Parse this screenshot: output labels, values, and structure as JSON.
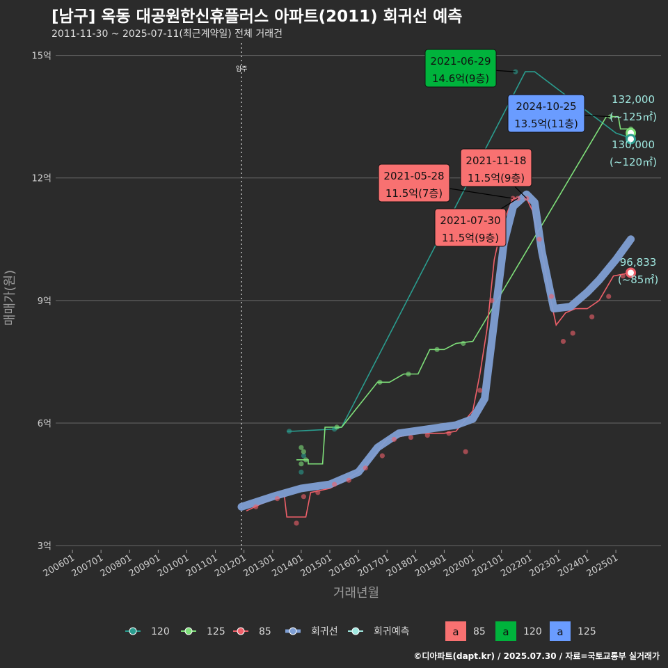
{
  "title": "[남구] 옥동 대공원한신휴플러스 아파트(2011) 회귀선 예측",
  "subtitle": "2011-11-30 ~ 2025-07-11(최근계약일) 전체 거래건",
  "caption": "©디아파트(dapt.kr) / 2025.07.30 / 자료=국토교통부 실거래가",
  "colors": {
    "s120": "#2a9d8f",
    "s125": "#7fe07a",
    "s85": "#f0606a",
    "regression": "#7f9fd4",
    "forecast": "#a0e8e0",
    "label85": "#f87171",
    "label120": "#00b33c",
    "label125": "#6a9cff"
  },
  "chart_data": {
    "type": "scatter",
    "xlabel": "거래년월",
    "ylabel": "매매가(원)",
    "x_ticks": [
      "200601",
      "200701",
      "200801",
      "200901",
      "201001",
      "201101",
      "201201",
      "201301",
      "201401",
      "201501",
      "201601",
      "201701",
      "201801",
      "201901",
      "202001",
      "202101",
      "202201",
      "202301",
      "202401",
      "202501"
    ],
    "y_ticks": [
      {
        "value": 3,
        "label": "3억"
      },
      {
        "value": 6,
        "label": "6억"
      },
      {
        "value": 9,
        "label": "9억"
      },
      {
        "value": 12,
        "label": "12억"
      },
      {
        "value": 15,
        "label": "15억"
      }
    ],
    "ylim": [
      2.9,
      15.3
    ],
    "xlim": [
      "2005-06-01",
      "2026-08-01"
    ],
    "vline": {
      "date": "2011-12-01",
      "label": "입주"
    },
    "series": [
      {
        "name": "120",
        "line": [
          [
            "2013-07-01",
            5.8
          ],
          [
            "2013-10-01",
            5.8
          ],
          [
            "2015-02-01",
            5.85
          ],
          [
            "2015-06-01",
            5.9
          ],
          [
            "2021-11-01",
            14.6
          ],
          [
            "2022-03-01",
            14.6
          ],
          [
            "2025-01-01",
            13.1
          ],
          [
            "2025-06-01",
            13.0
          ]
        ],
        "points": [
          [
            "2013-08-01",
            5.8
          ],
          [
            "2014-01-01",
            4.8
          ],
          [
            "2014-02-01",
            5.2
          ],
          [
            "2015-03-01",
            5.85
          ],
          [
            "2021-06-29",
            14.6
          ],
          [
            "2025-06-01",
            13.0
          ]
        ]
      },
      {
        "name": "125",
        "line": [
          [
            "2013-11-01",
            5.1
          ],
          [
            "2014-04-01",
            5.1
          ],
          [
            "2014-04-01",
            5.0
          ],
          [
            "2014-10-01",
            5.0
          ],
          [
            "2014-11-01",
            5.9
          ],
          [
            "2015-06-01",
            5.9
          ],
          [
            "2016-09-01",
            7.0
          ],
          [
            "2017-02-01",
            7.0
          ],
          [
            "2017-08-01",
            7.2
          ],
          [
            "2018-02-01",
            7.2
          ],
          [
            "2018-07-01",
            7.8
          ],
          [
            "2019-01-01",
            7.8
          ],
          [
            "2019-06-01",
            7.95
          ],
          [
            "2020-01-01",
            8.0
          ],
          [
            "2024-09-01",
            13.5
          ],
          [
            "2025-02-01",
            13.5
          ],
          [
            "2025-03-01",
            13.2
          ],
          [
            "2025-07-11",
            13.2
          ]
        ],
        "points": [
          [
            "2014-01-01",
            5.4
          ],
          [
            "2014-02-01",
            5.3
          ],
          [
            "2014-03-01",
            5.1
          ],
          [
            "2014-01-01",
            5.0
          ],
          [
            "2015-04-01",
            5.9
          ],
          [
            "2016-10-01",
            7.0
          ],
          [
            "2017-10-01",
            7.2
          ],
          [
            "2018-10-01",
            7.8
          ],
          [
            "2019-09-01",
            7.95
          ],
          [
            "2024-10-25",
            13.5
          ],
          [
            "2025-07-11",
            13.2
          ]
        ]
      },
      {
        "name": "85",
        "line": [
          [
            "2012-02-01",
            3.85
          ],
          [
            "2013-01-01",
            4.15
          ],
          [
            "2013-06-01",
            4.2
          ],
          [
            "2013-07-01",
            3.7
          ],
          [
            "2014-03-01",
            3.7
          ],
          [
            "2014-05-01",
            4.3
          ],
          [
            "2015-01-01",
            4.4
          ],
          [
            "2015-06-01",
            4.55
          ],
          [
            "2016-01-01",
            4.8
          ],
          [
            "2016-06-01",
            5.1
          ],
          [
            "2017-01-01",
            5.6
          ],
          [
            "2018-01-01",
            5.75
          ],
          [
            "2019-01-01",
            5.75
          ],
          [
            "2019-06-01",
            5.8
          ],
          [
            "2020-01-01",
            6.3
          ],
          [
            "2020-04-01",
            7.2
          ],
          [
            "2020-07-01",
            8.3
          ],
          [
            "2020-10-01",
            10.0
          ],
          [
            "2021-01-01",
            10.8
          ],
          [
            "2021-05-28",
            11.5
          ],
          [
            "2021-11-18",
            11.5
          ],
          [
            "2022-02-01",
            11.2
          ],
          [
            "2022-06-01",
            10.2
          ],
          [
            "2022-09-01",
            9.2
          ],
          [
            "2022-12-01",
            8.4
          ],
          [
            "2023-04-01",
            8.7
          ],
          [
            "2023-08-01",
            8.8
          ],
          [
            "2024-01-01",
            8.8
          ],
          [
            "2024-06-01",
            9.0
          ],
          [
            "2024-12-01",
            9.6
          ],
          [
            "2025-07-11",
            9.68
          ]
        ],
        "points": [
          [
            "2012-06-01",
            3.95
          ],
          [
            "2013-03-01",
            4.15
          ],
          [
            "2013-11-01",
            3.55
          ],
          [
            "2014-02-01",
            4.2
          ],
          [
            "2014-08-01",
            4.3
          ],
          [
            "2015-03-01",
            4.5
          ],
          [
            "2015-09-01",
            4.6
          ],
          [
            "2016-04-01",
            4.9
          ],
          [
            "2016-11-01",
            5.2
          ],
          [
            "2017-04-01",
            5.6
          ],
          [
            "2017-11-01",
            5.65
          ],
          [
            "2018-06-01",
            5.7
          ],
          [
            "2019-03-01",
            5.75
          ],
          [
            "2019-10-01",
            5.3
          ],
          [
            "2020-04-01",
            6.8
          ],
          [
            "2020-09-01",
            9.0
          ],
          [
            "2021-05-28",
            11.5
          ],
          [
            "2021-07-30",
            11.5
          ],
          [
            "2021-11-18",
            11.5
          ],
          [
            "2022-05-01",
            10.5
          ],
          [
            "2022-10-01",
            9.1
          ],
          [
            "2023-03-01",
            8.0
          ],
          [
            "2023-07-01",
            8.2
          ],
          [
            "2024-03-01",
            8.6
          ],
          [
            "2024-10-01",
            9.1
          ],
          [
            "2025-04-01",
            9.6
          ],
          [
            "2025-07-11",
            9.68
          ]
        ]
      },
      {
        "name": "회귀선",
        "line": [
          [
            "2011-11-30",
            3.95
          ],
          [
            "2013-01-01",
            4.2
          ],
          [
            "2014-01-01",
            4.4
          ],
          [
            "2015-01-01",
            4.5
          ],
          [
            "2016-01-01",
            4.8
          ],
          [
            "2016-09-01",
            5.4
          ],
          [
            "2017-06-01",
            5.75
          ],
          [
            "2018-06-01",
            5.85
          ],
          [
            "2019-06-01",
            5.95
          ],
          [
            "2020-01-01",
            6.1
          ],
          [
            "2020-06-01",
            6.6
          ],
          [
            "2020-10-01",
            8.5
          ],
          [
            "2021-02-01",
            10.4
          ],
          [
            "2021-06-01",
            11.3
          ],
          [
            "2021-11-18",
            11.6
          ],
          [
            "2022-03-01",
            11.4
          ],
          [
            "2022-06-01",
            10.2
          ],
          [
            "2022-11-01",
            8.8
          ],
          [
            "2023-06-01",
            8.85
          ],
          [
            "2024-01-01",
            9.2
          ],
          [
            "2024-06-01",
            9.5
          ],
          [
            "2025-01-01",
            10.0
          ],
          [
            "2025-07-11",
            10.5
          ]
        ]
      },
      {
        "name": "회귀예측",
        "points": [
          [
            "2025-07-11",
            13.1
          ],
          [
            "2025-07-11",
            12.95
          ],
          [
            "2025-07-11",
            9.68
          ]
        ]
      }
    ],
    "annotations": [
      {
        "date": "2021-06-29",
        "text": "14.6억(9층)",
        "series": "120",
        "value": 14.6
      },
      {
        "date": "2024-10-25",
        "text": "13.5억(11층)",
        "series": "125",
        "value": 13.5
      },
      {
        "date": "2021-11-18",
        "text": "11.5억(9층)",
        "series": "85",
        "value": 11.5
      },
      {
        "date": "2021-05-28",
        "text": "11.5억(7층)",
        "series": "85",
        "value": 11.5
      },
      {
        "date": "2021-07-30",
        "text": "11.5억(9층)",
        "series": "85",
        "value": 11.5
      }
    ],
    "end_labels": [
      {
        "price": "132,000",
        "area": "(~125㎡)",
        "series": "125"
      },
      {
        "price": "130,000",
        "area": "(~120㎡)",
        "series": "120"
      },
      {
        "price": "96,833",
        "area": "(~85㎡)",
        "series": "85"
      }
    ],
    "legend": {
      "position": "bottom",
      "items": [
        "120",
        "125",
        "85",
        "회귀선",
        "회귀예측"
      ],
      "label_items": [
        {
          "glyph": "a",
          "name": "85"
        },
        {
          "glyph": "a",
          "name": "120"
        },
        {
          "glyph": "a",
          "name": "125"
        }
      ]
    }
  }
}
